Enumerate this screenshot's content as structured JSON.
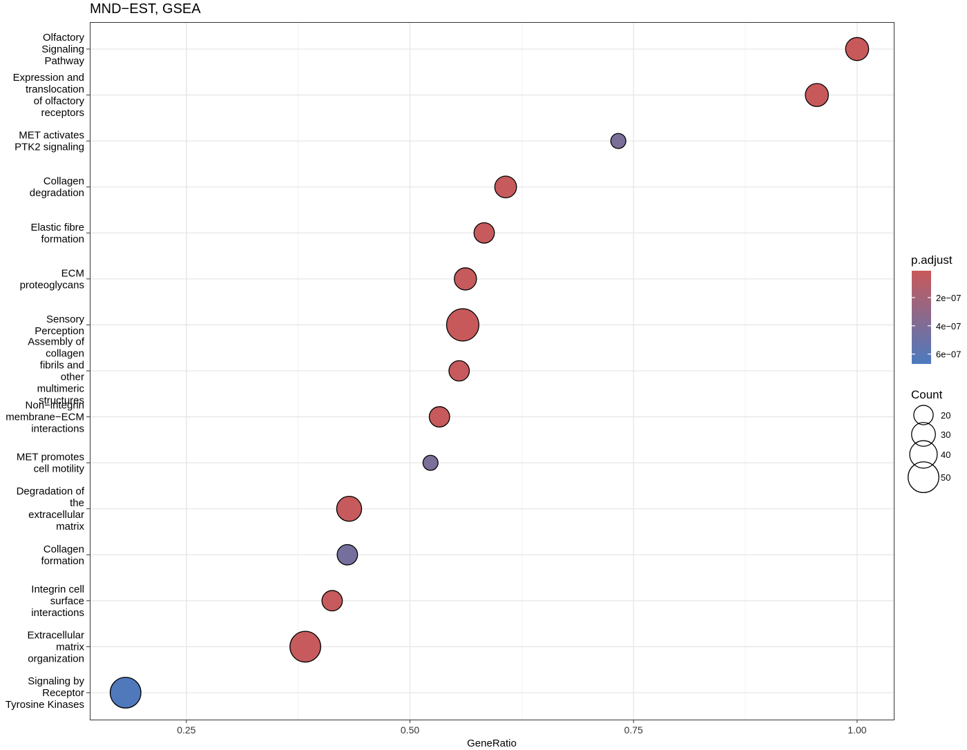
{
  "chart_data": {
    "type": "scatter",
    "title": "MND−EST, GSEA",
    "xlabel": "GeneRatio",
    "ylabel": "",
    "xlim": [
      0.142,
      1.041
    ],
    "x_ticks": [
      {
        "value": 0.25,
        "label": "0.25"
      },
      {
        "value": 0.5,
        "label": "0.50"
      },
      {
        "value": 0.75,
        "label": "0.75"
      },
      {
        "value": 1.0,
        "label": "1.00"
      }
    ],
    "grid": true,
    "legend_placement": "right",
    "categories": [
      {
        "label": [
          "Olfactory",
          "Signaling",
          "Pathway"
        ],
        "gene_ratio": 1.0,
        "p_adjust": 1e-08,
        "count": 28
      },
      {
        "label": [
          "Expression and",
          "translocation",
          "of olfactory",
          "receptors"
        ],
        "gene_ratio": 0.955,
        "p_adjust": 1e-08,
        "count": 28
      },
      {
        "label": [
          "MET activates",
          "PTK2 signaling"
        ],
        "gene_ratio": 0.733,
        "p_adjust": 4.2e-07,
        "count": 12
      },
      {
        "label": [
          "Collagen",
          "degradation"
        ],
        "gene_ratio": 0.607,
        "p_adjust": 2e-08,
        "count": 25
      },
      {
        "label": [
          "Elastic fibre",
          "formation"
        ],
        "gene_ratio": 0.583,
        "p_adjust": 2e-08,
        "count": 22
      },
      {
        "label": [
          "ECM",
          "proteoglycans"
        ],
        "gene_ratio": 0.562,
        "p_adjust": 2e-08,
        "count": 26
      },
      {
        "label": [
          "Sensory",
          "Perception"
        ],
        "gene_ratio": 0.559,
        "p_adjust": 1e-08,
        "count": 55
      },
      {
        "label": [
          "Assembly of",
          "collagen",
          "fibrils and",
          "other",
          "multimeric",
          "structures"
        ],
        "gene_ratio": 0.555,
        "p_adjust": 2e-08,
        "count": 22
      },
      {
        "label": [
          "Non−integrin",
          "membrane−ECM",
          "interactions"
        ],
        "gene_ratio": 0.533,
        "p_adjust": 2e-08,
        "count": 22
      },
      {
        "label": [
          "MET promotes",
          "cell motility"
        ],
        "gene_ratio": 0.523,
        "p_adjust": 4.2e-07,
        "count": 12
      },
      {
        "label": [
          "Degradation of",
          "the",
          "extracellular",
          "matrix"
        ],
        "gene_ratio": 0.432,
        "p_adjust": 2e-08,
        "count": 33
      },
      {
        "label": [
          "Collagen",
          "formation"
        ],
        "gene_ratio": 0.43,
        "p_adjust": 4.5e-07,
        "count": 22
      },
      {
        "label": [
          "Integrin cell",
          "surface",
          "interactions"
        ],
        "gene_ratio": 0.413,
        "p_adjust": 2e-08,
        "count": 22
      },
      {
        "label": [
          "Extracellular",
          "matrix",
          "organization"
        ],
        "gene_ratio": 0.383,
        "p_adjust": 2e-08,
        "count": 50
      },
      {
        "label": [
          "Signaling by",
          "Receptor",
          "Tyrosine Kinases"
        ],
        "gene_ratio": 0.182,
        "p_adjust": 6.5e-07,
        "count": 50
      }
    ],
    "color_legend": {
      "title": "p.adjust",
      "labels": [
        "2e−07",
        "4e−07",
        "6e−07"
      ],
      "label_values": [
        2e-07,
        4e-07,
        6e-07
      ],
      "range": [
        1e-08,
        6.7e-07
      ],
      "low_color": "#c8595a",
      "high_color": "#4c7abf"
    },
    "size_legend": {
      "title": "Count",
      "values": [
        20,
        30,
        40,
        50
      ],
      "labels": [
        "20",
        "30",
        "40",
        "50"
      ]
    }
  }
}
